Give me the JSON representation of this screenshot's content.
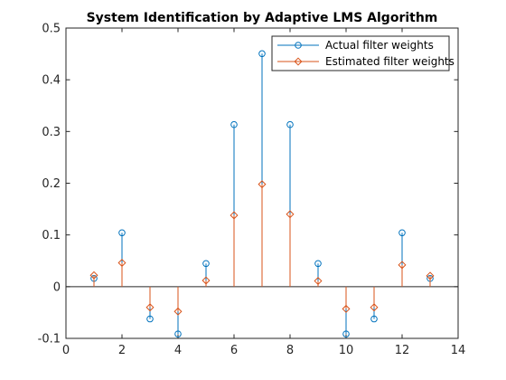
{
  "chart_data": {
    "type": "stem",
    "title": "System Identification by Adaptive LMS Algorithm",
    "xlabel": "",
    "ylabel": "",
    "xlim": [
      0,
      14
    ],
    "ylim": [
      -0.1,
      0.5
    ],
    "xticks": [
      0,
      2,
      4,
      6,
      8,
      10,
      12,
      14
    ],
    "yticks": [
      -0.1,
      0,
      0.1,
      0.2,
      0.3,
      0.4,
      0.5
    ],
    "grid": false,
    "legend_position": "top-right",
    "baseline": 0,
    "x": [
      1,
      2,
      3,
      4,
      5,
      6,
      7,
      8,
      9,
      10,
      11,
      12,
      13
    ],
    "series": [
      {
        "name": "Actual filter weights",
        "color": "#0072BD",
        "marker": "circle",
        "x_offset": 0,
        "values": [
          0.0159,
          0.1042,
          -0.0624,
          -0.0915,
          0.0447,
          0.3133,
          0.4505,
          0.3133,
          0.0447,
          -0.0915,
          -0.0624,
          0.1042,
          0.0159
        ]
      },
      {
        "name": "Estimated filter weights",
        "color": "#D95319",
        "marker": "diamond",
        "x_offset": 0,
        "values": [
          0.022,
          0.046,
          -0.04,
          -0.048,
          0.012,
          0.138,
          0.198,
          0.14,
          0.011,
          -0.043,
          -0.04,
          0.042,
          0.021
        ]
      }
    ]
  }
}
